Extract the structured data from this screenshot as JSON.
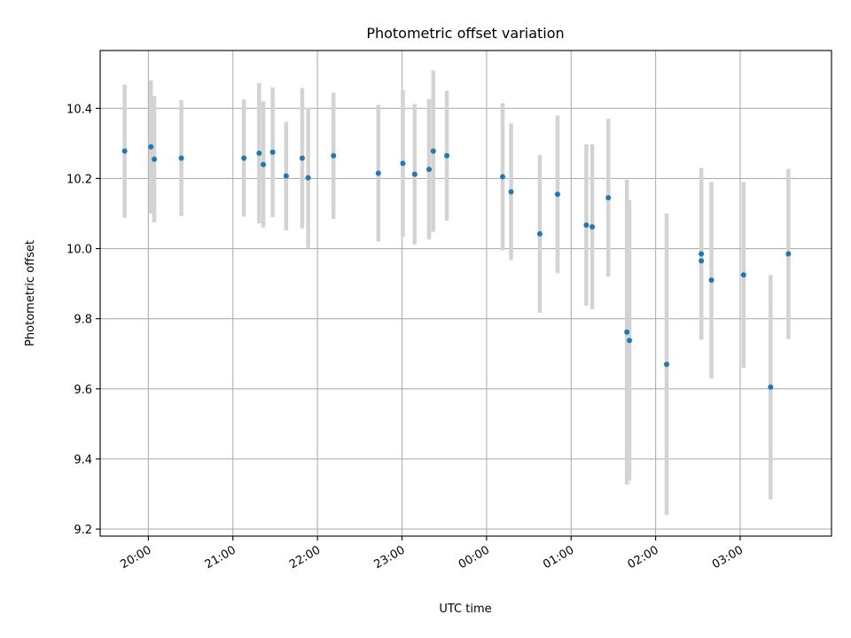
{
  "chart_data": {
    "type": "scatter",
    "title": "Photometric offset variation",
    "xlabel": "UTC time",
    "ylabel": "Photometric offset",
    "x_unit": "hours (UTC, continuing past midnight)",
    "xlim": [
      19.43,
      28.08
    ],
    "ylim": [
      9.18,
      10.565
    ],
    "grid": true,
    "colors": {
      "points": "#1f77b4",
      "errorbars": "#d3d3d3",
      "grid": "#b0b0b0"
    },
    "x_ticks": [
      {
        "value": 20,
        "label": "20:00"
      },
      {
        "value": 21,
        "label": "21:00"
      },
      {
        "value": 22,
        "label": "22:00"
      },
      {
        "value": 23,
        "label": "23:00"
      },
      {
        "value": 24,
        "label": "00:00"
      },
      {
        "value": 25,
        "label": "01:00"
      },
      {
        "value": 26,
        "label": "02:00"
      },
      {
        "value": 27,
        "label": "03:00"
      }
    ],
    "y_ticks": [
      {
        "value": 9.2,
        "label": "9.2"
      },
      {
        "value": 9.4,
        "label": "9.4"
      },
      {
        "value": 9.6,
        "label": "9.6"
      },
      {
        "value": 9.8,
        "label": "9.8"
      },
      {
        "value": 10.0,
        "label": "10.0"
      },
      {
        "value": 10.2,
        "label": "10.2"
      },
      {
        "value": 10.4,
        "label": "10.4"
      }
    ],
    "points": [
      {
        "x": 19.72,
        "y": 10.278,
        "err": 0.19
      },
      {
        "x": 20.03,
        "y": 10.29,
        "err": 0.19
      },
      {
        "x": 20.07,
        "y": 10.255,
        "err": 0.18
      },
      {
        "x": 20.39,
        "y": 10.258,
        "err": 0.165
      },
      {
        "x": 21.13,
        "y": 10.258,
        "err": 0.167
      },
      {
        "x": 21.31,
        "y": 10.272,
        "err": 0.2
      },
      {
        "x": 21.36,
        "y": 10.24,
        "err": 0.18
      },
      {
        "x": 21.47,
        "y": 10.275,
        "err": 0.185
      },
      {
        "x": 21.63,
        "y": 10.207,
        "err": 0.155
      },
      {
        "x": 21.82,
        "y": 10.258,
        "err": 0.2
      },
      {
        "x": 21.89,
        "y": 10.202,
        "err": 0.2
      },
      {
        "x": 22.19,
        "y": 10.265,
        "err": 0.18
      },
      {
        "x": 22.72,
        "y": 10.215,
        "err": 0.195
      },
      {
        "x": 23.01,
        "y": 10.243,
        "err": 0.21
      },
      {
        "x": 23.15,
        "y": 10.212,
        "err": 0.2
      },
      {
        "x": 23.32,
        "y": 10.226,
        "err": 0.2
      },
      {
        "x": 23.37,
        "y": 10.278,
        "err": 0.23
      },
      {
        "x": 23.53,
        "y": 10.265,
        "err": 0.185
      },
      {
        "x": 24.19,
        "y": 10.205,
        "err": 0.21
      },
      {
        "x": 24.29,
        "y": 10.162,
        "err": 0.195
      },
      {
        "x": 24.63,
        "y": 10.042,
        "err": 0.225
      },
      {
        "x": 24.84,
        "y": 10.155,
        "err": 0.225
      },
      {
        "x": 25.18,
        "y": 10.067,
        "err": 0.23
      },
      {
        "x": 25.25,
        "y": 10.062,
        "err": 0.235
      },
      {
        "x": 25.44,
        "y": 10.145,
        "err": 0.225
      },
      {
        "x": 25.66,
        "y": 9.762,
        "err": 0.435
      },
      {
        "x": 25.69,
        "y": 9.738,
        "err": 0.4
      },
      {
        "x": 26.13,
        "y": 9.67,
        "err": 0.43
      },
      {
        "x": 26.54,
        "y": 9.985,
        "err": 0.245
      },
      {
        "x": 26.54,
        "y": 9.965,
        "err": 0.225
      },
      {
        "x": 26.66,
        "y": 9.91,
        "err": 0.28
      },
      {
        "x": 27.04,
        "y": 9.925,
        "err": 0.265
      },
      {
        "x": 27.36,
        "y": 9.605,
        "err": 0.32
      },
      {
        "x": 27.57,
        "y": 9.985,
        "err": 0.243
      }
    ]
  }
}
